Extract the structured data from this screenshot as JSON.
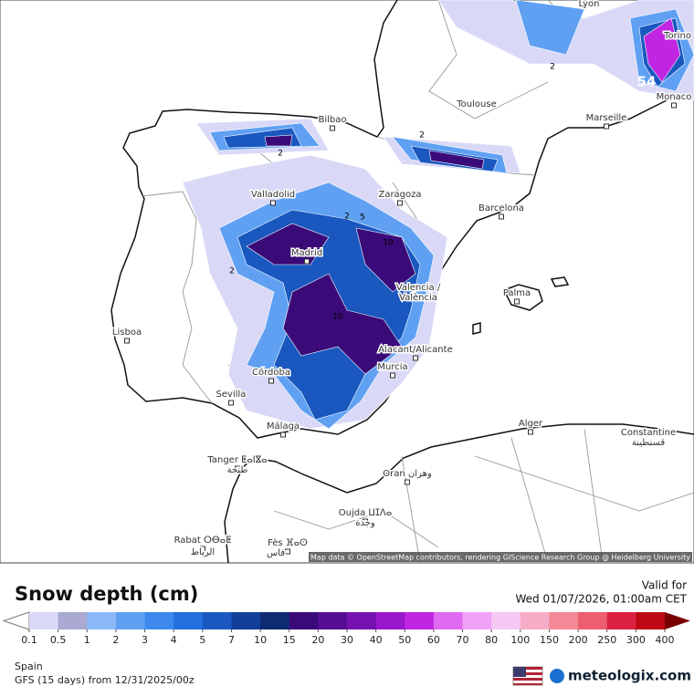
{
  "header": {
    "title": "Snow depth (cm)",
    "valid_label": "Valid for",
    "valid_time": "Wed 01/07/2026, 01:00am CET"
  },
  "map": {
    "cities": [
      "Lyon",
      "Torino",
      "Toulouse",
      "Bilbao",
      "Marseille",
      "Monaco",
      "Valladolid",
      "Zaragoza",
      "Barcelona",
      "Madrid",
      "Valencia /",
      "València",
      "Palma",
      "Lisboa",
      "Córdoba",
      "Alacant/Alicante",
      "Murcia",
      "Sevilla",
      "Málaga",
      "Alger",
      "Constantine",
      "قسنطينة",
      "Tanger ⵟⴰⵏⴵⴰ",
      "طنجة",
      "Oran وهران",
      "Oujda ⵡⵊⴷⴰ",
      "وجدة",
      "Rabat ⵔⴱⴰⵟ",
      "الرباط",
      "Fès ⴼⴰⵙ",
      "فاس"
    ],
    "contour_labels": [
      2,
      2,
      2,
      2,
      5,
      10,
      10,
      2,
      54
    ],
    "attribution": "Map data © OpenStreetMap contributors, rendering GIScience Research Group @ Heidelberg University"
  },
  "legend": {
    "ticks": [
      0.1,
      0.5,
      1,
      2,
      3,
      4,
      5,
      7,
      10,
      15,
      20,
      30,
      40,
      50,
      60,
      70,
      80,
      100,
      150,
      200,
      250,
      300,
      400
    ],
    "colors": [
      "#d9d9f7",
      "#a9a9d2",
      "#8cb8f7",
      "#5fa0f2",
      "#3d88ec",
      "#226fde",
      "#1a58c0",
      "#123f98",
      "#0d2a72",
      "#3a0b78",
      "#560d94",
      "#7512b0",
      "#9a18cc",
      "#c026e2",
      "#e06af2",
      "#f0a2f6",
      "#f6c8f4",
      "#f6acc6",
      "#f48896",
      "#ee5e70",
      "#dc2240",
      "#bd0a14",
      "#9a0000",
      "#780000"
    ]
  },
  "footer": {
    "region": "Spain",
    "model": "GFS (15 days) from  12/31/2025/00z",
    "brand": "meteologix.com"
  }
}
